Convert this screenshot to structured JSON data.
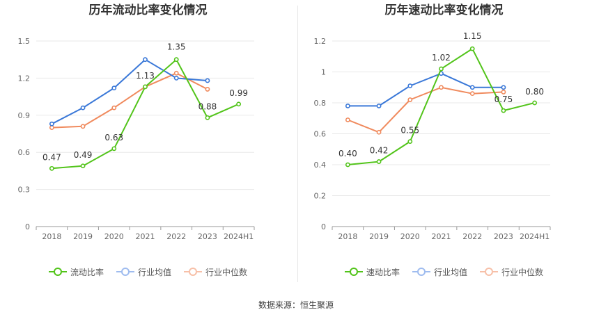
{
  "colors": {
    "company": "#52c41a",
    "industry_avg": "#3a78d8",
    "industry_median": "#f08a5d",
    "grid": "#e8e8e8",
    "axis": "#999999",
    "tick_text": "#666666"
  },
  "source_text": "数据来源：恒生聚源",
  "chart_data": [
    {
      "type": "line",
      "title": "历年流动比率变化情况",
      "categories": [
        "2018",
        "2019",
        "2020",
        "2021",
        "2022",
        "2023",
        "2024H1"
      ],
      "ylim": [
        0,
        1.5
      ],
      "yticks": [
        0,
        0.3,
        0.6,
        0.9,
        1.2,
        1.5
      ],
      "ytick_labels": [
        "0",
        "0.3",
        "0.6",
        "0.9",
        "1.2",
        "1.5"
      ],
      "grid": true,
      "legend_position": "bottom-center",
      "series": [
        {
          "name": "流动比率",
          "color_key": "company",
          "values": [
            0.47,
            0.49,
            0.63,
            1.13,
            1.35,
            0.88,
            0.99
          ],
          "labels": [
            "0.47",
            "0.49",
            "0.63",
            "1.13",
            "1.35",
            "0.88",
            "0.99"
          ]
        },
        {
          "name": "行业均值",
          "color_key": "industry_avg",
          "values": [
            0.83,
            0.96,
            1.12,
            1.35,
            1.2,
            1.18,
            null
          ]
        },
        {
          "name": "行业中位数",
          "color_key": "industry_median",
          "values": [
            0.8,
            0.81,
            0.96,
            1.13,
            1.24,
            1.11,
            null
          ]
        }
      ]
    },
    {
      "type": "line",
      "title": "历年速动比率变化情况",
      "categories": [
        "2018",
        "2019",
        "2020",
        "2021",
        "2022",
        "2023",
        "2024H1"
      ],
      "ylim": [
        0,
        1.2
      ],
      "yticks": [
        0,
        0.2,
        0.4,
        0.6,
        0.8,
        1.0,
        1.2
      ],
      "ytick_labels": [
        "0",
        "0.2",
        "0.4",
        "0.6",
        "0.8",
        "1",
        "1.2"
      ],
      "grid": true,
      "legend_position": "bottom-center",
      "series": [
        {
          "name": "速动比率",
          "color_key": "company",
          "values": [
            0.4,
            0.42,
            0.55,
            1.02,
            1.15,
            0.75,
            0.8
          ],
          "labels": [
            "0.40",
            "0.42",
            "0.55",
            "1.02",
            "1.15",
            "0.75",
            "0.80"
          ]
        },
        {
          "name": "行业均值",
          "color_key": "industry_avg",
          "values": [
            0.78,
            0.78,
            0.91,
            0.99,
            0.9,
            0.9,
            null
          ]
        },
        {
          "name": "行业中位数",
          "color_key": "industry_median",
          "values": [
            0.69,
            0.61,
            0.82,
            0.9,
            0.86,
            0.87,
            null
          ]
        }
      ]
    }
  ]
}
